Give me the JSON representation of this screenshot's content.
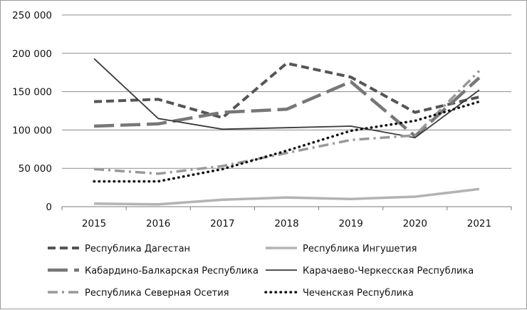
{
  "chart_data": {
    "type": "line",
    "title": "",
    "xlabel": "",
    "ylabel": "",
    "x": [
      "2015",
      "2016",
      "2017",
      "2018",
      "2019",
      "2020",
      "2021"
    ],
    "ylim": [
      0,
      250000
    ],
    "yticks": [
      0,
      50000,
      100000,
      150000,
      200000,
      250000
    ],
    "ytick_labels": [
      "0",
      "50 000",
      "100 000",
      "150 000",
      "200 000",
      "250 000"
    ],
    "grid": "horizontal",
    "legend_position": "bottom",
    "series": [
      {
        "name": "Республика Дагестан",
        "values": [
          137000,
          140000,
          116000,
          187000,
          169000,
          123000,
          143000
        ],
        "color": "#555555",
        "style": "dashed-bold"
      },
      {
        "name": "Республика Ингушетия",
        "values": [
          4000,
          3000,
          9000,
          12000,
          10000,
          13000,
          23000
        ],
        "color": "#b3b3b3",
        "style": "solid-thick"
      },
      {
        "name": "Кабардино-Балкарская Республика",
        "values": [
          105000,
          108000,
          123000,
          127000,
          163000,
          92000,
          168000
        ],
        "color": "#777777",
        "style": "long-dash"
      },
      {
        "name": "Карачаево-Черкесская Республика",
        "values": [
          193000,
          115000,
          101000,
          103000,
          105000,
          90000,
          152000
        ],
        "color": "#3a3a3a",
        "style": "solid-thin"
      },
      {
        "name": "Республика Северная Осетия",
        "values": [
          49000,
          43000,
          53000,
          70000,
          87000,
          93000,
          177000
        ],
        "color": "#999999",
        "style": "dash-dot"
      },
      {
        "name": "Чеченская Республика",
        "values": [
          33000,
          33000,
          49000,
          73000,
          99000,
          112000,
          137000
        ],
        "color": "#111111",
        "style": "dotted"
      }
    ]
  }
}
